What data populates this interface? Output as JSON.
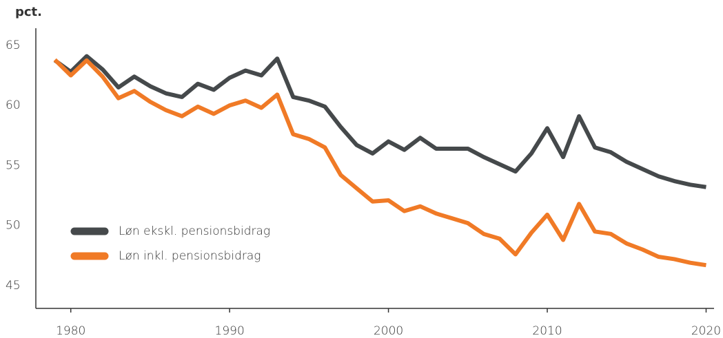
{
  "chart_data": {
    "type": "line",
    "y_label": "pct.",
    "x": [
      1979,
      1980,
      1981,
      1982,
      1983,
      1984,
      1985,
      1986,
      1987,
      1988,
      1989,
      1990,
      1991,
      1992,
      1993,
      1994,
      1995,
      1996,
      1997,
      1998,
      1999,
      2000,
      2001,
      2002,
      2003,
      2004,
      2005,
      2006,
      2007,
      2008,
      2009,
      2010,
      2011,
      2012,
      2013,
      2014,
      2015,
      2016,
      2017,
      2018,
      2019,
      2020
    ],
    "series": [
      {
        "name": "Løn ekskl. pensionsbidrag",
        "color": "#45494b",
        "values": [
          63.75,
          62.8,
          64.1,
          63.0,
          61.5,
          62.4,
          61.6,
          61.0,
          60.7,
          61.8,
          61.3,
          62.3,
          62.9,
          62.5,
          63.9,
          60.7,
          60.4,
          59.9,
          58.2,
          56.7,
          56.0,
          57.0,
          56.3,
          57.3,
          56.4,
          56.4,
          56.4,
          55.7,
          55.1,
          54.5,
          56.0,
          58.1,
          55.7,
          59.1,
          56.5,
          56.1,
          55.3,
          54.7,
          54.1,
          53.7,
          53.4,
          53.2
        ]
      },
      {
        "name": "Løn inkl. pensionsbidrag",
        "color": "#f07a26",
        "values": [
          63.8,
          62.5,
          63.75,
          62.4,
          60.6,
          61.2,
          60.3,
          59.6,
          59.1,
          59.9,
          59.3,
          60.0,
          60.4,
          59.8,
          60.9,
          57.6,
          57.2,
          56.5,
          54.2,
          53.1,
          52.0,
          52.1,
          51.2,
          51.6,
          51.0,
          50.6,
          50.2,
          49.3,
          48.9,
          47.6,
          49.4,
          50.9,
          48.8,
          51.8,
          49.5,
          49.3,
          48.5,
          48.0,
          47.4,
          47.2,
          46.9,
          46.7
        ]
      }
    ],
    "xlim": [
      1977.8,
      2020.5
    ],
    "xticks": [
      1980,
      1990,
      2000,
      2010,
      2020
    ],
    "ylim": [
      43.1,
      67
    ],
    "yticks": [
      45,
      50,
      55,
      60,
      65
    ],
    "grid": false,
    "legend": "left"
  }
}
